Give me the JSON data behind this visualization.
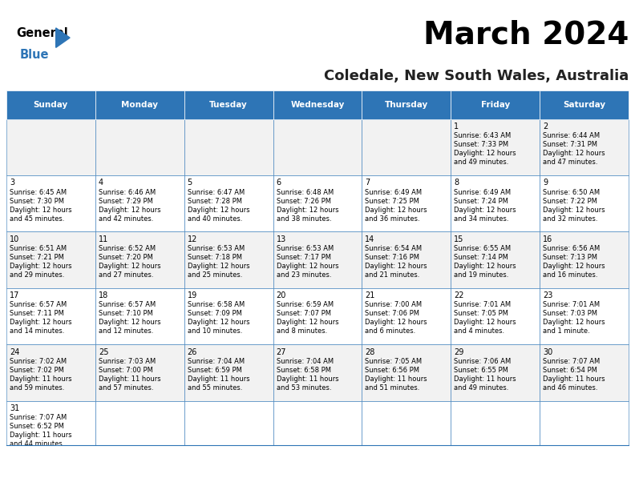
{
  "title": "March 2024",
  "subtitle": "Coledale, New South Wales, Australia",
  "header_bg": "#2e75b6",
  "header_text_color": "#ffffff",
  "weekdays": [
    "Sunday",
    "Monday",
    "Tuesday",
    "Wednesday",
    "Thursday",
    "Friday",
    "Saturday"
  ],
  "title_fontsize": 28,
  "subtitle_fontsize": 13,
  "odd_row_bg": "#f2f2f2",
  "even_row_bg": "#ffffff",
  "cell_border_color": "#2e75b6",
  "days": [
    {
      "day": 1,
      "col": 5,
      "row": 0,
      "sunrise": "6:43 AM",
      "sunset": "7:33 PM",
      "daylight": "12 hours and 49 minutes."
    },
    {
      "day": 2,
      "col": 6,
      "row": 0,
      "sunrise": "6:44 AM",
      "sunset": "7:31 PM",
      "daylight": "12 hours and 47 minutes."
    },
    {
      "day": 3,
      "col": 0,
      "row": 1,
      "sunrise": "6:45 AM",
      "sunset": "7:30 PM",
      "daylight": "12 hours and 45 minutes."
    },
    {
      "day": 4,
      "col": 1,
      "row": 1,
      "sunrise": "6:46 AM",
      "sunset": "7:29 PM",
      "daylight": "12 hours and 42 minutes."
    },
    {
      "day": 5,
      "col": 2,
      "row": 1,
      "sunrise": "6:47 AM",
      "sunset": "7:28 PM",
      "daylight": "12 hours and 40 minutes."
    },
    {
      "day": 6,
      "col": 3,
      "row": 1,
      "sunrise": "6:48 AM",
      "sunset": "7:26 PM",
      "daylight": "12 hours and 38 minutes."
    },
    {
      "day": 7,
      "col": 4,
      "row": 1,
      "sunrise": "6:49 AM",
      "sunset": "7:25 PM",
      "daylight": "12 hours and 36 minutes."
    },
    {
      "day": 8,
      "col": 5,
      "row": 1,
      "sunrise": "6:49 AM",
      "sunset": "7:24 PM",
      "daylight": "12 hours and 34 minutes."
    },
    {
      "day": 9,
      "col": 6,
      "row": 1,
      "sunrise": "6:50 AM",
      "sunset": "7:22 PM",
      "daylight": "12 hours and 32 minutes."
    },
    {
      "day": 10,
      "col": 0,
      "row": 2,
      "sunrise": "6:51 AM",
      "sunset": "7:21 PM",
      "daylight": "12 hours and 29 minutes."
    },
    {
      "day": 11,
      "col": 1,
      "row": 2,
      "sunrise": "6:52 AM",
      "sunset": "7:20 PM",
      "daylight": "12 hours and 27 minutes."
    },
    {
      "day": 12,
      "col": 2,
      "row": 2,
      "sunrise": "6:53 AM",
      "sunset": "7:18 PM",
      "daylight": "12 hours and 25 minutes."
    },
    {
      "day": 13,
      "col": 3,
      "row": 2,
      "sunrise": "6:53 AM",
      "sunset": "7:17 PM",
      "daylight": "12 hours and 23 minutes."
    },
    {
      "day": 14,
      "col": 4,
      "row": 2,
      "sunrise": "6:54 AM",
      "sunset": "7:16 PM",
      "daylight": "12 hours and 21 minutes."
    },
    {
      "day": 15,
      "col": 5,
      "row": 2,
      "sunrise": "6:55 AM",
      "sunset": "7:14 PM",
      "daylight": "12 hours and 19 minutes."
    },
    {
      "day": 16,
      "col": 6,
      "row": 2,
      "sunrise": "6:56 AM",
      "sunset": "7:13 PM",
      "daylight": "12 hours and 16 minutes."
    },
    {
      "day": 17,
      "col": 0,
      "row": 3,
      "sunrise": "6:57 AM",
      "sunset": "7:11 PM",
      "daylight": "12 hours and 14 minutes."
    },
    {
      "day": 18,
      "col": 1,
      "row": 3,
      "sunrise": "6:57 AM",
      "sunset": "7:10 PM",
      "daylight": "12 hours and 12 minutes."
    },
    {
      "day": 19,
      "col": 2,
      "row": 3,
      "sunrise": "6:58 AM",
      "sunset": "7:09 PM",
      "daylight": "12 hours and 10 minutes."
    },
    {
      "day": 20,
      "col": 3,
      "row": 3,
      "sunrise": "6:59 AM",
      "sunset": "7:07 PM",
      "daylight": "12 hours and 8 minutes."
    },
    {
      "day": 21,
      "col": 4,
      "row": 3,
      "sunrise": "7:00 AM",
      "sunset": "7:06 PM",
      "daylight": "12 hours and 6 minutes."
    },
    {
      "day": 22,
      "col": 5,
      "row": 3,
      "sunrise": "7:01 AM",
      "sunset": "7:05 PM",
      "daylight": "12 hours and 4 minutes."
    },
    {
      "day": 23,
      "col": 6,
      "row": 3,
      "sunrise": "7:01 AM",
      "sunset": "7:03 PM",
      "daylight": "12 hours and 1 minute."
    },
    {
      "day": 24,
      "col": 0,
      "row": 4,
      "sunrise": "7:02 AM",
      "sunset": "7:02 PM",
      "daylight": "11 hours and 59 minutes."
    },
    {
      "day": 25,
      "col": 1,
      "row": 4,
      "sunrise": "7:03 AM",
      "sunset": "7:00 PM",
      "daylight": "11 hours and 57 minutes."
    },
    {
      "day": 26,
      "col": 2,
      "row": 4,
      "sunrise": "7:04 AM",
      "sunset": "6:59 PM",
      "daylight": "11 hours and 55 minutes."
    },
    {
      "day": 27,
      "col": 3,
      "row": 4,
      "sunrise": "7:04 AM",
      "sunset": "6:58 PM",
      "daylight": "11 hours and 53 minutes."
    },
    {
      "day": 28,
      "col": 4,
      "row": 4,
      "sunrise": "7:05 AM",
      "sunset": "6:56 PM",
      "daylight": "11 hours and 51 minutes."
    },
    {
      "day": 29,
      "col": 5,
      "row": 4,
      "sunrise": "7:06 AM",
      "sunset": "6:55 PM",
      "daylight": "11 hours and 49 minutes."
    },
    {
      "day": 30,
      "col": 6,
      "row": 4,
      "sunrise": "7:07 AM",
      "sunset": "6:54 PM",
      "daylight": "11 hours and 46 minutes."
    },
    {
      "day": 31,
      "col": 0,
      "row": 5,
      "sunrise": "7:07 AM",
      "sunset": "6:52 PM",
      "daylight": "11 hours and 44 minutes."
    }
  ]
}
